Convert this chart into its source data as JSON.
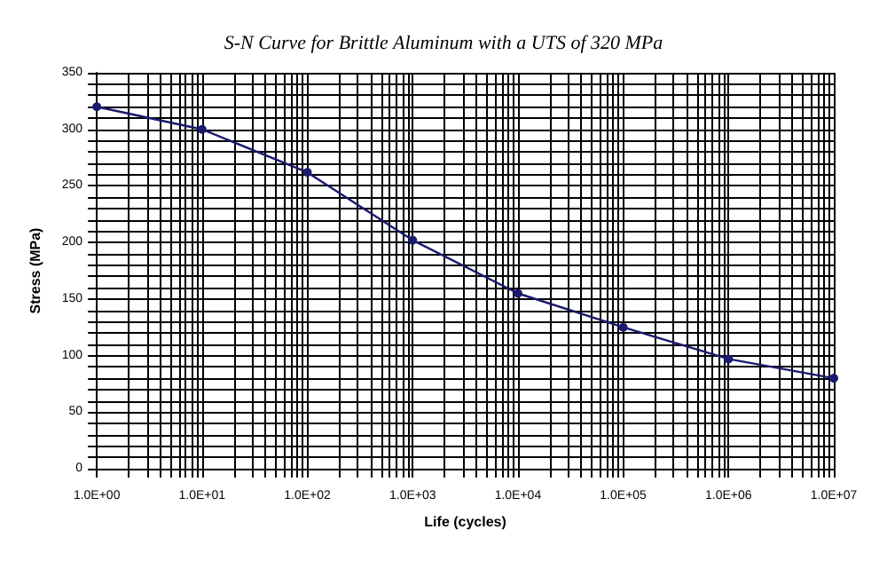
{
  "chart_data": {
    "type": "line",
    "title": "S-N Curve for Brittle Aluminum with a UTS of 320 MPa",
    "xlabel": "Life (cycles)",
    "ylabel": "Stress (MPa)",
    "x": [
      1,
      10,
      100,
      1000,
      10000,
      100000,
      1000000,
      10000000
    ],
    "series": [
      {
        "color": "#1a1a6e",
        "values": [
          320,
          300,
          262,
          202,
          155,
          125,
          97,
          80
        ]
      }
    ],
    "log": "x",
    "xlim": [
      1,
      10000000
    ],
    "xticks": [
      {
        "value": 1,
        "label": "1.0E+00"
      },
      {
        "value": 10,
        "label": "1.0E+01"
      },
      {
        "value": 100,
        "label": "1.0E+02"
      },
      {
        "value": 1000,
        "label": "1.0E+03"
      },
      {
        "value": 10000,
        "label": "1.0E+04"
      },
      {
        "value": 100000,
        "label": "1.0E+05"
      },
      {
        "value": 1000000,
        "label": "1.0E+06"
      },
      {
        "value": 10000000,
        "label": "1.0E+07"
      }
    ],
    "ylim": [
      0,
      350
    ],
    "yticks": [
      0,
      50,
      100,
      150,
      200,
      250,
      300,
      350
    ],
    "grid": true,
    "marker": "circle",
    "line_style": "solid"
  }
}
